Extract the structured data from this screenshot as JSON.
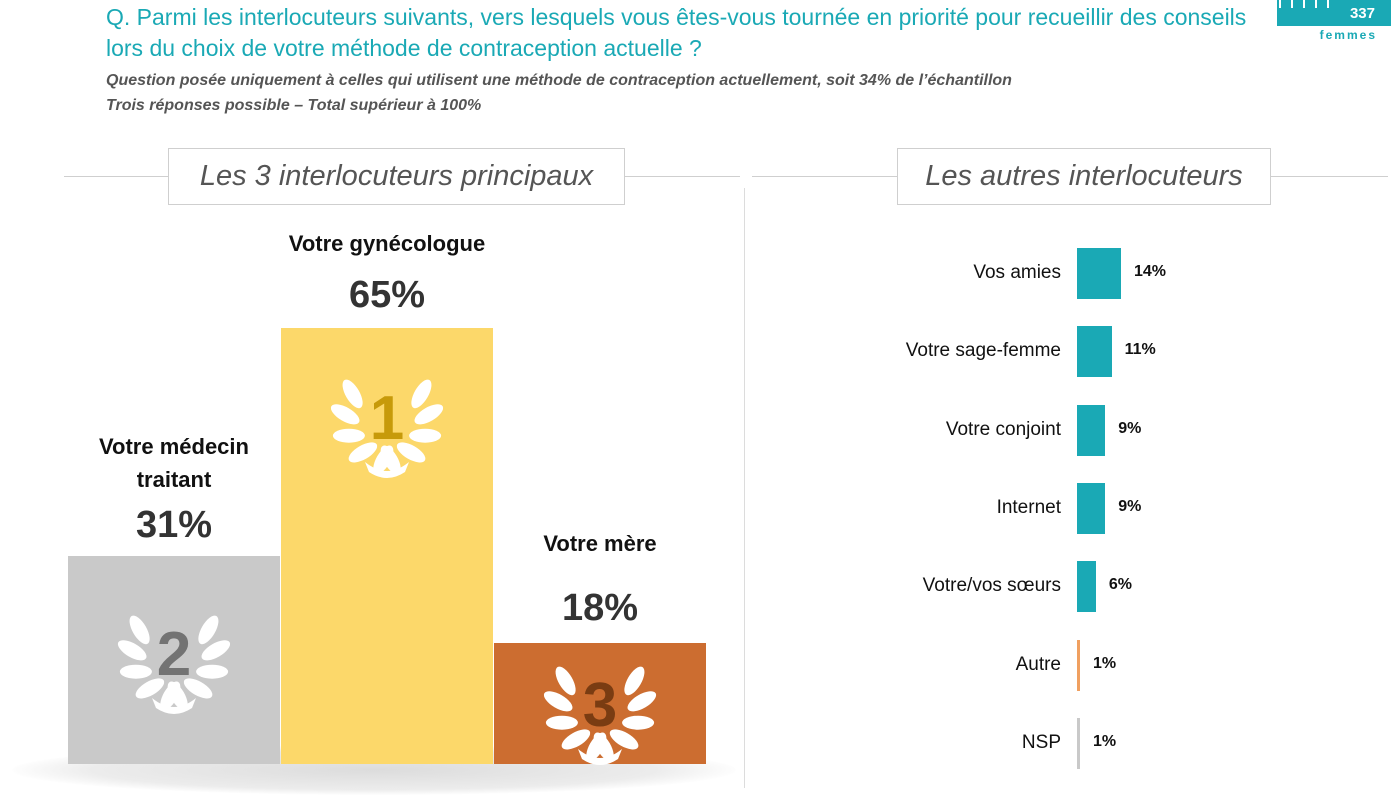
{
  "header": {
    "question": "Q. Parmi les interlocuteurs suivants, vers lesquels vous êtes-vous tournée en priorité pour recueillir des conseils lors du choix de votre méthode de contraception actuelle ?",
    "note_line1": "Question posée uniquement à celles qui utilisent une méthode de contraception actuellement, soit 34% de l’échantillon",
    "note_line2": "Trois réponses possible – Total supérieur à 100%",
    "badge_number": "337",
    "badge_label": "femmes"
  },
  "colors": {
    "accent": "#1aa9b5",
    "gold": "#fcd86a",
    "silver": "#c9c9c9",
    "bronze": "#cc6d30",
    "autre": "#f0a060",
    "nsp": "#c9c9c9"
  },
  "chart_data": [
    {
      "type": "bar",
      "title": "Les 3 interlocuteurs principaux",
      "categories": [
        "Votre médecin traitant",
        "Votre gynécologue",
        "Votre mère"
      ],
      "values": [
        31,
        65,
        18
      ],
      "ranks": [
        "2",
        "1",
        "3"
      ],
      "value_labels": [
        "31%",
        "65%",
        "18%"
      ],
      "label_lines": [
        [
          "Votre médecin",
          "traitant"
        ],
        [
          "Votre gynécologue"
        ],
        [
          "Votre mère"
        ]
      ],
      "ylim": [
        0,
        65
      ]
    },
    {
      "type": "bar",
      "orientation": "horizontal",
      "title": "Les autres interlocuteurs",
      "categories": [
        "Vos amies",
        "Votre sage-femme",
        "Votre conjoint",
        "Internet",
        "Votre/vos sœurs",
        "Autre",
        "NSP"
      ],
      "values": [
        14,
        11,
        9,
        9,
        6,
        1,
        1
      ],
      "value_labels": [
        "14%",
        "11%",
        "9%",
        "9%",
        "6%",
        "1%",
        "1%"
      ],
      "bar_colors": [
        "#1aa9b5",
        "#1aa9b5",
        "#1aa9b5",
        "#1aa9b5",
        "#1aa9b5",
        "#f0a060",
        "#c9c9c9"
      ],
      "xlim": [
        0,
        14
      ]
    }
  ]
}
